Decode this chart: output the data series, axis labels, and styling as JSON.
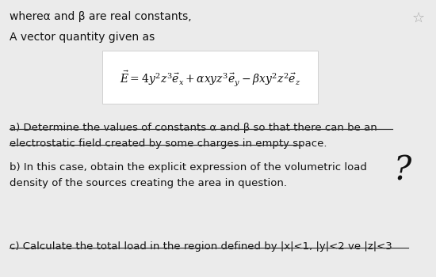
{
  "background_color": "#ebebeb",
  "box_color": "#ffffff",
  "title_line": "whereα and β are real constants,",
  "subtitle_line": "A vector quantity given as",
  "equation": "$\\vec{E} = 4y^2z^3\\vec{e}_x + \\alpha xyz^3\\vec{e}_y - \\beta xy^2z^2\\vec{e}_z$",
  "part_a_line1": "a) Determine the values of constants α and β so that there can be an",
  "part_a_line2": "electrostatic field created by some charges in empty space.",
  "part_b_line1": "b) In this case, obtain the explicit expression of the volumetric load",
  "part_b_line2": "density of the sources creating the area in question.",
  "part_c": "c) Calculate the total load in the region defined by |x|<1, |y|<2 ve |z|<3",
  "text_color": "#111111",
  "star_color": "#aaaaaa",
  "strikethrough_color": "#333333",
  "box_edge_color": "#cccccc"
}
